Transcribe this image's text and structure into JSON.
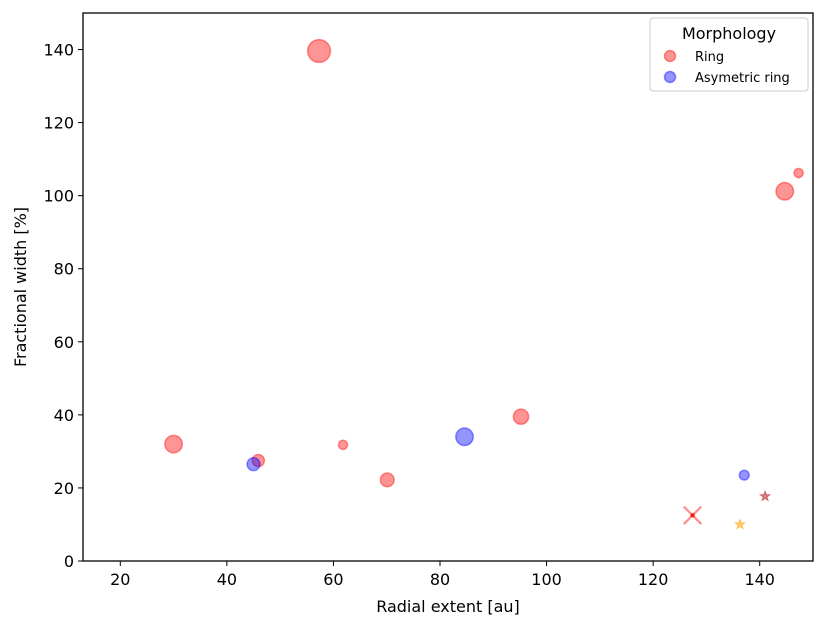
{
  "chart_data": {
    "type": "scatter",
    "xlabel": "Radial extent [au]",
    "ylabel": "Fractional width [%]",
    "xlim": [
      13,
      150
    ],
    "ylim": [
      0,
      150
    ],
    "xticks": [
      20,
      40,
      60,
      80,
      100,
      120,
      140
    ],
    "yticks": [
      0,
      20,
      40,
      60,
      80,
      100,
      120,
      140
    ],
    "grid": false,
    "legend": {
      "title": "Morphology",
      "placement": "top-right",
      "entries": [
        {
          "label": "Ring",
          "color": "#ff0000"
        },
        {
          "label": "Asymetric ring",
          "color": "#0000ff"
        }
      ]
    },
    "series": [
      {
        "name": "Ring",
        "color": "#ff0000",
        "marker": "circle",
        "points": [
          {
            "x": 57.3,
            "y": 139.6,
            "size": 3
          },
          {
            "x": 30.0,
            "y": 32.0,
            "size": 2.3
          },
          {
            "x": 45.9,
            "y": 27.5,
            "size": 1.6
          },
          {
            "x": 61.8,
            "y": 31.8,
            "size": 1.2
          },
          {
            "x": 70.1,
            "y": 22.2,
            "size": 1.8
          },
          {
            "x": 95.2,
            "y": 39.5,
            "size": 2.0
          },
          {
            "x": 144.7,
            "y": 101.2,
            "size": 2.3
          },
          {
            "x": 147.3,
            "y": 106.2,
            "size": 1.2
          }
        ]
      },
      {
        "name": "Asymetric ring",
        "color": "#0000ff",
        "marker": "circle",
        "points": [
          {
            "x": 45.0,
            "y": 26.5,
            "size": 1.7
          },
          {
            "x": 84.6,
            "y": 34.0,
            "size": 2.3
          },
          {
            "x": 137.1,
            "y": 23.5,
            "size": 1.3
          }
        ]
      },
      {
        "marker": "x",
        "color": "#ff0000",
        "points": [
          {
            "x": 127.4,
            "y": 12.5,
            "size": 2.3
          }
        ]
      },
      {
        "marker": "star",
        "color": "#ffa500",
        "points": [
          {
            "x": 136.3,
            "y": 10.0,
            "size": 1.2
          }
        ]
      },
      {
        "marker": "star",
        "color": "#b22222",
        "points": [
          {
            "x": 141.0,
            "y": 17.7,
            "size": 1.2
          }
        ]
      }
    ]
  }
}
